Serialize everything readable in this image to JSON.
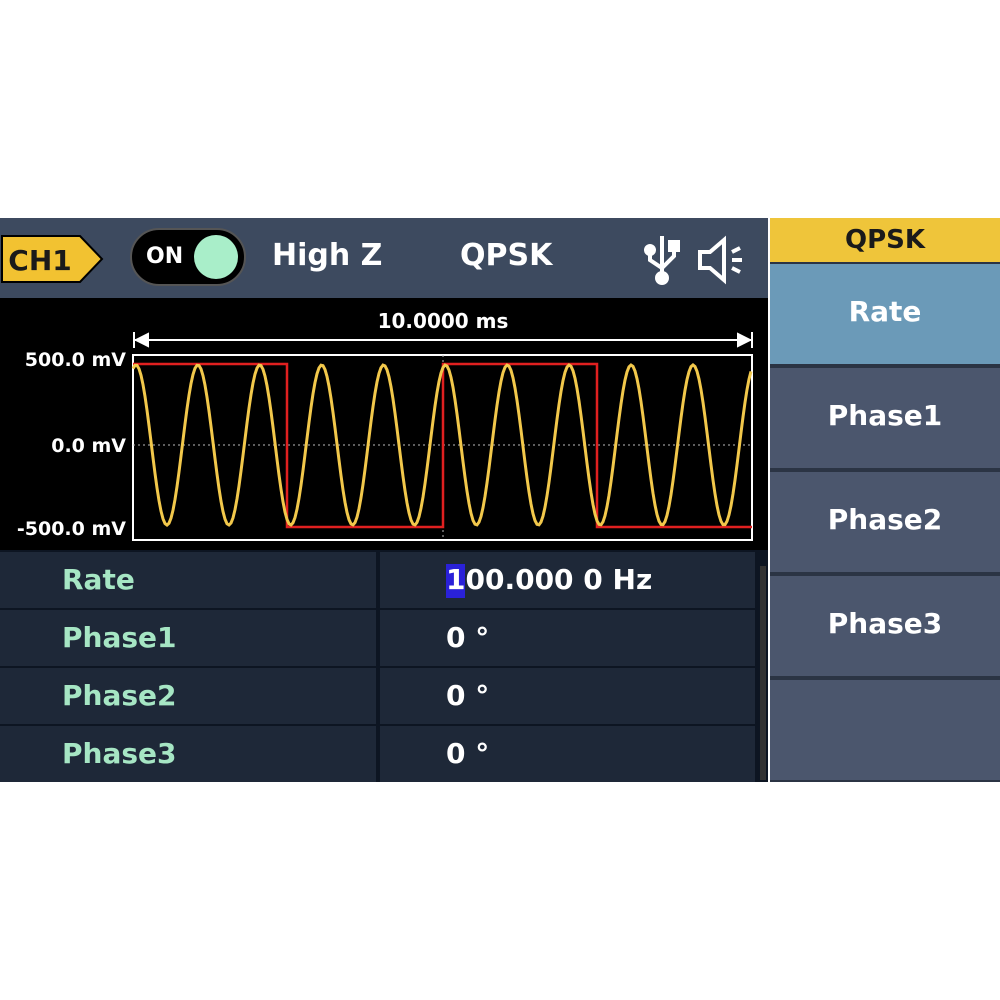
{
  "header": {
    "channel": "CH1",
    "output": "ON",
    "load": "High Z",
    "mode": "QPSK"
  },
  "waveform": {
    "time_span": "10.0000 ms",
    "y_labels": [
      "500.0 mV",
      "0.0 mV",
      "-500.0 mV"
    ]
  },
  "table": {
    "rows": [
      [
        "Rate",
        "100.000 0 Hz"
      ],
      [
        "Phase1",
        "0 °"
      ],
      [
        "Phase2",
        "0 °"
      ],
      [
        "Phase3",
        "0 °"
      ]
    ]
  },
  "menu": {
    "title": "QPSK",
    "items": [
      "Rate",
      "Phase1",
      "Phase2",
      "Phase3"
    ]
  }
}
